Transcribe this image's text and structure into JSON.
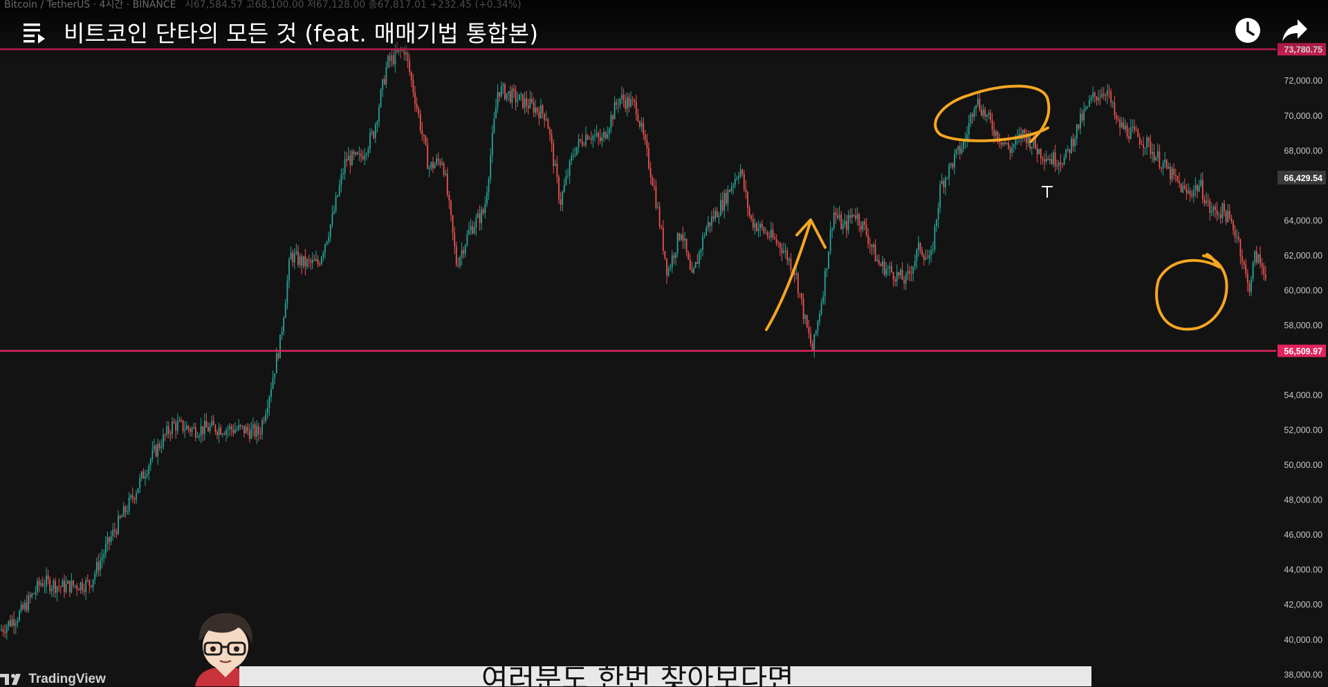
{
  "player": {
    "title": "비트코인 단타의 모든 것 (feat. 매매기법 통합본)",
    "icons": {
      "playlist": "playlist-icon",
      "watch_later": "clock-icon",
      "share": "share-arrow-icon"
    }
  },
  "chart_header": {
    "symbol": "Bitcoin / TetherUS · 4시간 · BINANCE",
    "ohlc": "시67,584.57 고68,100.00 저67,128.00 종67,817.01 +232.45 (+0.34%)"
  },
  "chart_data": {
    "type": "candlestick",
    "symbol": "Bitcoin / TetherUS",
    "interval": "4시간",
    "exchange": "BINANCE",
    "y_ticks": [
      "72,000.00",
      "70,000.00",
      "68,000.00",
      "64,000.00",
      "62,000.00",
      "60,000.00",
      "58,000.00",
      "54,000.00",
      "52,000.00",
      "50,000.00",
      "48,000.00",
      "46,000.00",
      "44,000.00",
      "42,000.00",
      "40,000.00",
      "38,000.00"
    ],
    "ylim": [
      37300,
      76600
    ],
    "horizontal_lines": [
      {
        "price": 73780.75,
        "label": "73,780.75",
        "color": "#e0245e"
      },
      {
        "price": 56509.97,
        "label": "56,509.97",
        "color": "#e0245e"
      }
    ],
    "current_price": {
      "price": 66429.54,
      "label": "66,429.54"
    },
    "up_color": "#26a69a",
    "down_color": "#ef5350",
    "price_path": [
      [
        0,
        40500
      ],
      [
        30,
        41500
      ],
      [
        60,
        43300
      ],
      [
        90,
        43000
      ],
      [
        130,
        43200
      ],
      [
        160,
        45800
      ],
      [
        190,
        48000
      ],
      [
        220,
        50500
      ],
      [
        250,
        52300
      ],
      [
        280,
        52000
      ],
      [
        310,
        52100
      ],
      [
        350,
        52000
      ],
      [
        375,
        51800
      ],
      [
        390,
        54200
      ],
      [
        405,
        57000
      ],
      [
        420,
        62000
      ],
      [
        440,
        61500
      ],
      [
        460,
        61500
      ],
      [
        480,
        64000
      ],
      [
        500,
        67500
      ],
      [
        520,
        67500
      ],
      [
        540,
        69000
      ],
      [
        560,
        73000
      ],
      [
        585,
        73800
      ],
      [
        600,
        71000
      ],
      [
        620,
        67000
      ],
      [
        640,
        67500
      ],
      [
        660,
        61500
      ],
      [
        680,
        63500
      ],
      [
        700,
        64500
      ],
      [
        720,
        71500
      ],
      [
        745,
        71000
      ],
      [
        770,
        70500
      ],
      [
        790,
        70000
      ],
      [
        810,
        65000
      ],
      [
        830,
        68000
      ],
      [
        850,
        69000
      ],
      [
        870,
        68500
      ],
      [
        895,
        71000
      ],
      [
        920,
        70500
      ],
      [
        945,
        66000
      ],
      [
        965,
        61000
      ],
      [
        985,
        63500
      ],
      [
        1000,
        60500
      ],
      [
        1020,
        63500
      ],
      [
        1045,
        65000
      ],
      [
        1070,
        67000
      ],
      [
        1085,
        64000
      ],
      [
        1100,
        63500
      ],
      [
        1130,
        62500
      ],
      [
        1150,
        61000
      ],
      [
        1165,
        58000
      ],
      [
        1175,
        56500
      ],
      [
        1190,
        60000
      ],
      [
        1205,
        64500
      ],
      [
        1220,
        63500
      ],
      [
        1235,
        64500
      ],
      [
        1250,
        63500
      ],
      [
        1270,
        61500
      ],
      [
        1290,
        61000
      ],
      [
        1310,
        60500
      ],
      [
        1330,
        62500
      ],
      [
        1345,
        61500
      ],
      [
        1360,
        66000
      ],
      [
        1380,
        67500
      ],
      [
        1395,
        68500
      ],
      [
        1410,
        71000
      ],
      [
        1425,
        70000
      ],
      [
        1440,
        69000
      ],
      [
        1460,
        68000
      ],
      [
        1480,
        69000
      ],
      [
        1500,
        68000
      ],
      [
        1520,
        67500
      ],
      [
        1540,
        67500
      ],
      [
        1560,
        69500
      ],
      [
        1580,
        71000
      ],
      [
        1600,
        71500
      ],
      [
        1615,
        69500
      ],
      [
        1635,
        69000
      ],
      [
        1655,
        68500
      ],
      [
        1675,
        67500
      ],
      [
        1695,
        66500
      ],
      [
        1715,
        65500
      ],
      [
        1735,
        66000
      ],
      [
        1750,
        64500
      ],
      [
        1770,
        64500
      ],
      [
        1790,
        63000
      ],
      [
        1805,
        60000
      ],
      [
        1815,
        62000
      ],
      [
        1830,
        61000
      ]
    ],
    "annotations": [
      {
        "type": "arrow",
        "color": "#f5a623"
      },
      {
        "type": "ellipse",
        "color": "#f5a623"
      },
      {
        "type": "circle",
        "color": "#f5a623"
      }
    ]
  },
  "branding": {
    "tradingview": "TradingView"
  },
  "subtitle": {
    "text": "여러분도 한번 찾아보다면"
  },
  "avatar": {
    "icon": "cartoon-presenter-avatar"
  }
}
